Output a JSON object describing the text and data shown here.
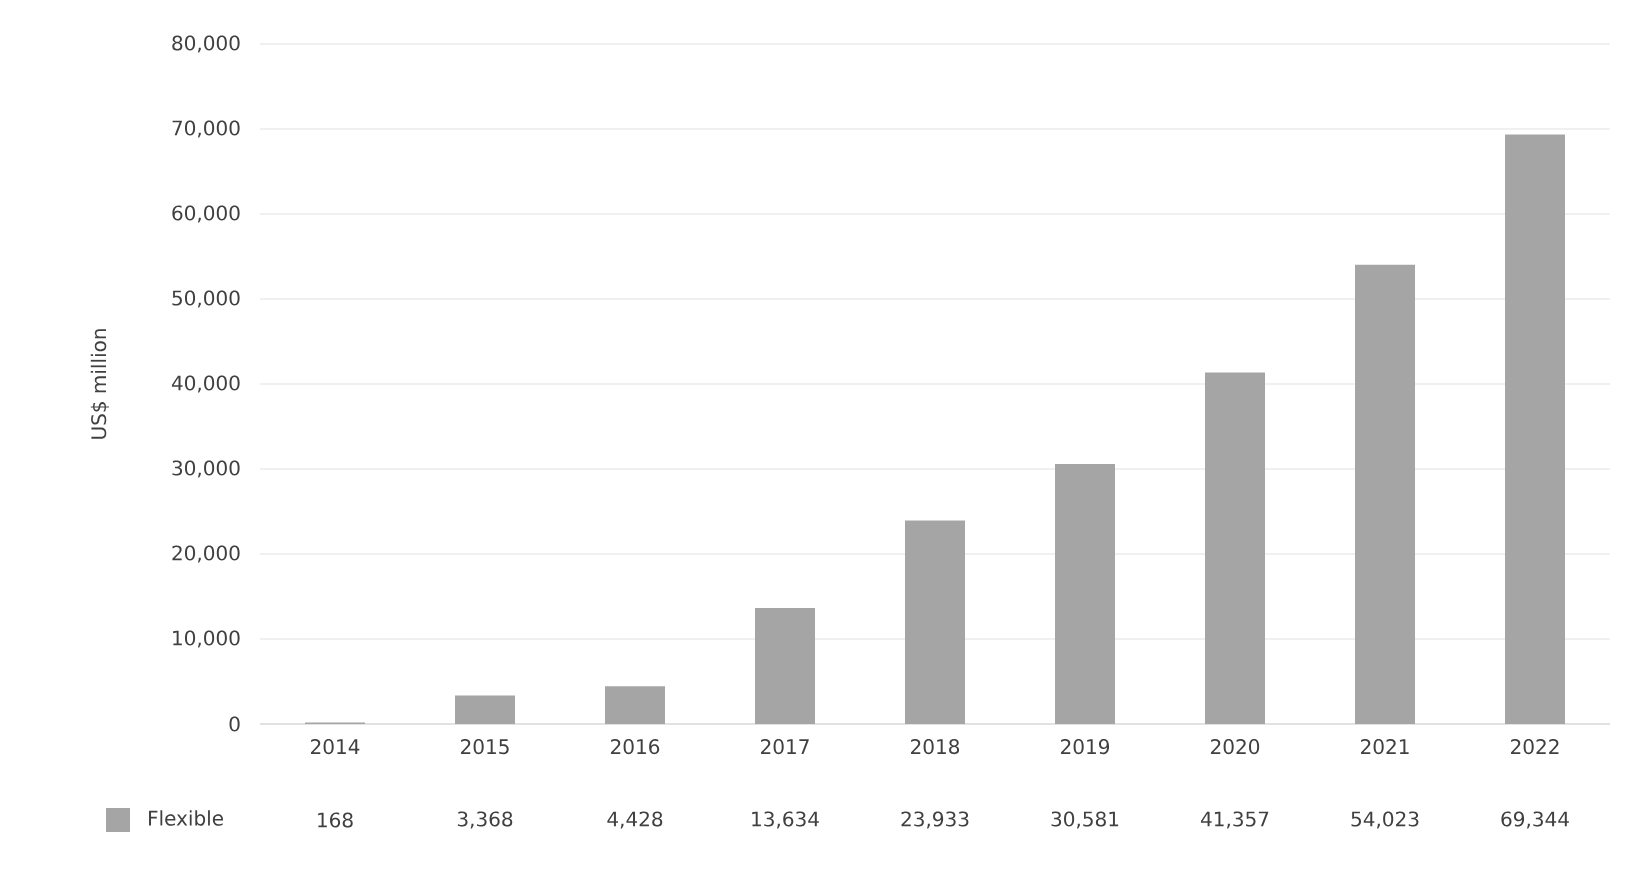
{
  "chart_data": {
    "type": "bar",
    "ylabel": "US$ million",
    "categories": [
      "2014",
      "2015",
      "2016",
      "2017",
      "2018",
      "2019",
      "2020",
      "2021",
      "2022"
    ],
    "series": [
      {
        "name": "Flexible",
        "color": "#a5a5a5",
        "values": [
          168,
          3368,
          4428,
          13634,
          23933,
          30581,
          41357,
          54023,
          69344
        ],
        "value_labels": [
          "168",
          "3,368",
          "4,428",
          "13,634",
          "23,933",
          "30,581",
          "41,357",
          "54,023",
          "69,344"
        ]
      }
    ],
    "legend": "bottom left",
    "grid": "y",
    "ylim": [
      0,
      80000
    ],
    "yticks": [
      {
        "value": 0,
        "label": "0"
      },
      {
        "value": 10000,
        "label": "10,000"
      },
      {
        "value": 20000,
        "label": "20,000"
      },
      {
        "value": 30000,
        "label": "30,000"
      },
      {
        "value": 40000,
        "label": "40,000"
      },
      {
        "value": 50000,
        "label": "50,000"
      },
      {
        "value": 60000,
        "label": "60,000"
      },
      {
        "value": 70000,
        "label": "70,000"
      },
      {
        "value": 80000,
        "label": "80,000"
      }
    ]
  }
}
